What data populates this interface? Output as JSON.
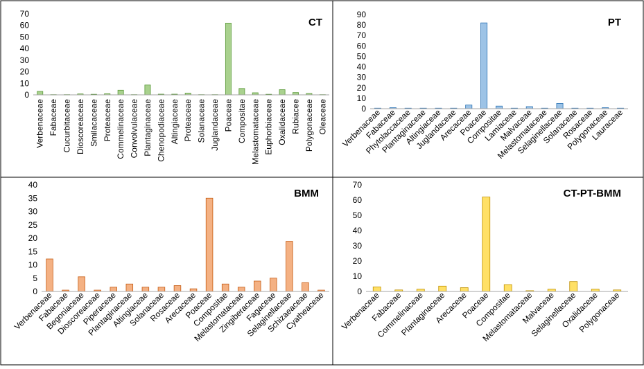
{
  "chart_data": [
    {
      "type": "bar",
      "title": "CT",
      "color": "#a9d18e",
      "stroke": "#5b9a3a",
      "ylim": [
        0,
        70
      ],
      "yticks": [
        0,
        10,
        20,
        30,
        40,
        50,
        60,
        70
      ],
      "categories": [
        "Verbenaceae",
        "Fabaceae",
        "Cucurbitaceae",
        "Dioscoreaceae",
        "Smilacaceae",
        "Proteaceae",
        "Commelinaceae",
        "Convolvulaceae",
        "Plantaginaceae",
        "Chenopodiaceae",
        "Altingiaceae",
        "Proteaceae",
        "Solanaceae",
        "Juglandaceae",
        "Poaceae",
        "Compositae",
        "Melastomataceae",
        "Euphorbiaceae",
        "Oxalidaceae",
        "Rubiacee",
        "Polygonaceae",
        "Oleaceae"
      ],
      "values": [
        3,
        0.2,
        0.2,
        0.8,
        0.5,
        1,
        4,
        0.2,
        8.5,
        0.6,
        0.6,
        1.5,
        0.2,
        0.2,
        62,
        5.5,
        1.8,
        0.5,
        4.5,
        2,
        1.2,
        0.2
      ]
    },
    {
      "type": "bar",
      "title": "PT",
      "color": "#9dc3e6",
      "stroke": "#2e75b6",
      "ylim": [
        0,
        90
      ],
      "yticks": [
        0,
        10,
        20,
        30,
        40,
        50,
        60,
        70,
        80,
        90
      ],
      "categories": [
        "Verbenaceae",
        "Fabaceae",
        "Phytolaccaceae",
        "Plantaginaceae",
        "Altingiaceae",
        "Juglandaceae",
        "Arecaceae",
        "Poaceae",
        "Compositae",
        "Lamiaceae",
        "Malvaceae",
        "Melastomataceae",
        "Selaginellaceae",
        "Solanaceae",
        "Rosaceae",
        "Polygonaceae",
        "Lauraceae"
      ],
      "values": [
        0.5,
        1,
        0.5,
        0.5,
        0.5,
        0.5,
        3.5,
        82,
        2.5,
        0.5,
        2,
        0.5,
        5,
        0.5,
        0.5,
        1,
        0.5
      ]
    },
    {
      "type": "bar",
      "title": "BMM",
      "color": "#f4b183",
      "stroke": "#c55a11",
      "ylim": [
        0,
        40
      ],
      "yticks": [
        0,
        5,
        10,
        15,
        20,
        25,
        30,
        35,
        40
      ],
      "categories": [
        "Verbenaceae",
        "Fabaceae",
        "Begoniaceae",
        "Dioscoreaceae",
        "Piperaceae",
        "Plantaginaceae",
        "Altingiaceae",
        "Solanaceae",
        "Rosaceae",
        "Arecaceae",
        "Poaceae",
        "Compositae",
        "Melastomataceae",
        "Zingiberaceae",
        "Fagaceae",
        "Selaginellaceae",
        "Schizaeaceae",
        "Cyatheaceae"
      ],
      "values": [
        12.2,
        0.5,
        5.5,
        0.5,
        1.6,
        2.8,
        1.6,
        1.6,
        2.2,
        1,
        35,
        2.8,
        1.6,
        3.9,
        5,
        18.8,
        3.3,
        0.5
      ]
    },
    {
      "type": "bar",
      "title": "CT-PT-BMM",
      "color": "#ffe066",
      "stroke": "#bf9000",
      "ylim": [
        0,
        70
      ],
      "yticks": [
        0,
        10,
        20,
        30,
        40,
        50,
        60,
        70
      ],
      "categories": [
        "Verbenaceae",
        "Fabaceae",
        "Commelinaceae",
        "Plantaginaceae",
        "Arecaceae",
        "Poaceae",
        "Compositae",
        "Melastomataceae",
        "Malvaceae",
        "Selaginellaceae",
        "Oxalidaceae",
        "Polygonaceae"
      ],
      "values": [
        3,
        1,
        1.5,
        3.5,
        2.5,
        62,
        4.5,
        0.5,
        1.5,
        6.5,
        1.5,
        1
      ]
    }
  ]
}
